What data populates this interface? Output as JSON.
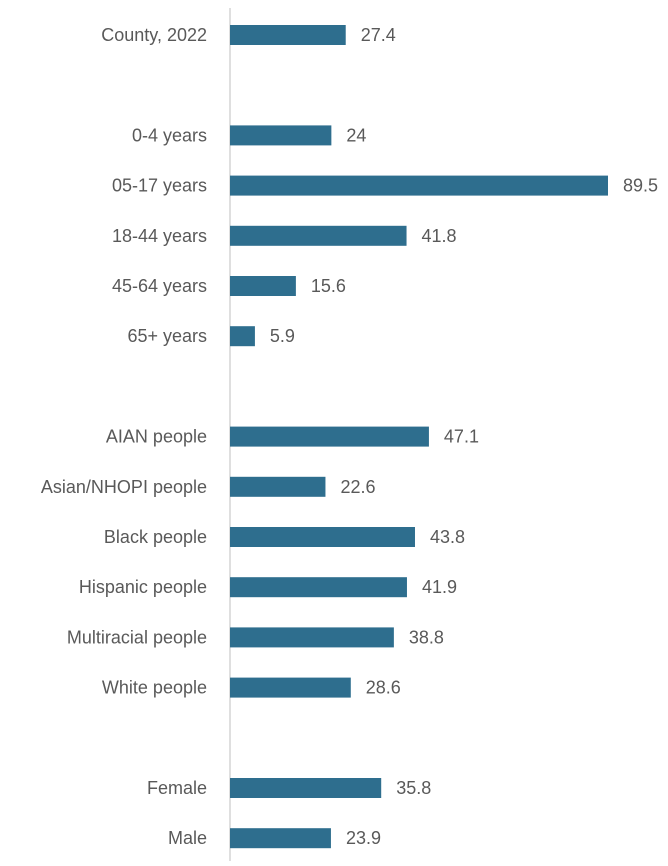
{
  "chart_data": {
    "type": "bar",
    "orientation": "horizontal",
    "title": "",
    "xlabel": "",
    "ylabel": "",
    "xlim": [
      0,
      89.5
    ],
    "grid": false,
    "legend": "none",
    "colors": {
      "bar": "#2E6E8E",
      "label_text": "#595959",
      "axis_line": "#BFBFBF"
    },
    "groups": [
      {
        "categories": [
          "County, 2022"
        ],
        "values": [
          27.4
        ],
        "value_labels": [
          "27.4"
        ]
      },
      {
        "categories": [
          "0-4 years",
          "05-17 years",
          "18-44 years",
          "45-64 years",
          "65+ years"
        ],
        "values": [
          24,
          89.5,
          41.8,
          15.6,
          5.9
        ],
        "value_labels": [
          "24",
          "89.5",
          "41.8",
          "15.6",
          "5.9"
        ]
      },
      {
        "categories": [
          "AIAN people",
          "Asian/NHOPI people",
          "Black people",
          "Hispanic people",
          "Multiracial people",
          "White people"
        ],
        "values": [
          47.1,
          22.6,
          43.8,
          41.9,
          38.8,
          28.6
        ],
        "value_labels": [
          "47.1",
          "22.6",
          "43.8",
          "41.9",
          "38.8",
          "28.6"
        ]
      },
      {
        "categories": [
          "Female",
          "Male"
        ],
        "values": [
          35.8,
          23.9
        ],
        "value_labels": [
          "35.8",
          "23.9"
        ]
      }
    ]
  }
}
